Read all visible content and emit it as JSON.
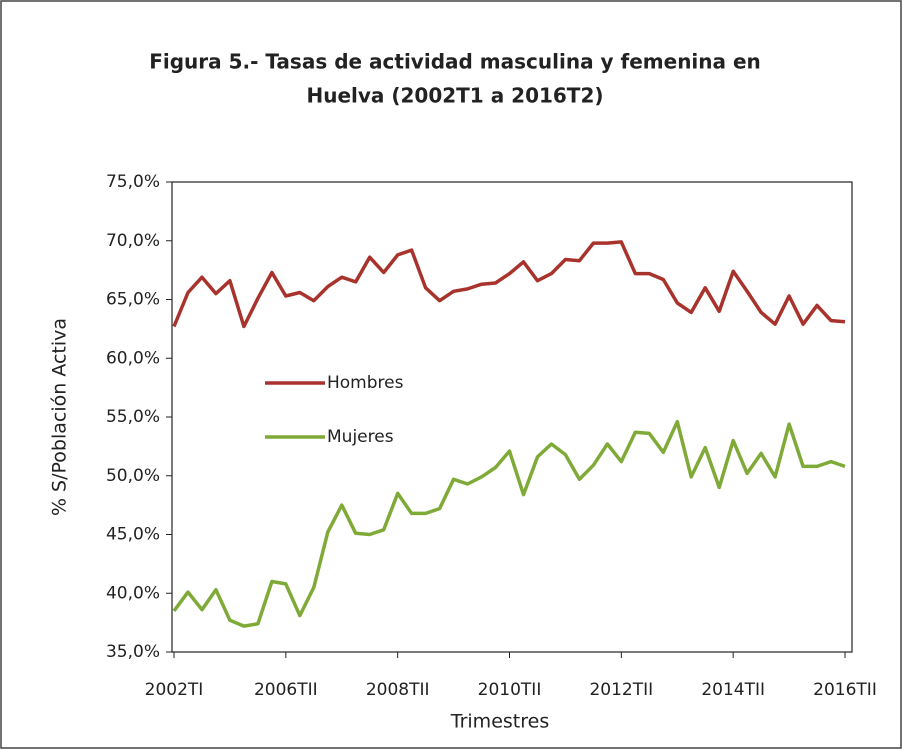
{
  "chart_data": {
    "type": "line",
    "title": "Figura 5.- Tasas de actividad masculina y femenina en",
    "subtitle": "Huelva (2002T1 a 2016T2)",
    "x_label": "Trimestres",
    "y_label": "% S/Población Activa",
    "categories": [
      "2002TI",
      null,
      null,
      null,
      null,
      null,
      null,
      null,
      "2006TII",
      null,
      null,
      null,
      null,
      null,
      null,
      null,
      "2008TII",
      null,
      null,
      null,
      null,
      null,
      null,
      null,
      "2010TII",
      null,
      null,
      null,
      null,
      null,
      null,
      null,
      "2012TII",
      null,
      null,
      null,
      null,
      null,
      null,
      null,
      "2014TII",
      null,
      null,
      null,
      null,
      null,
      null,
      null,
      "2016TII"
    ],
    "series": [
      {
        "name": "Hombres",
        "color": "#a8332c",
        "values": [
          62.7,
          65.6,
          66.9,
          65.5,
          66.6,
          62.7,
          65.1,
          67.3,
          65.3,
          65.6,
          64.9,
          66.1,
          66.9,
          66.5,
          68.6,
          67.3,
          68.8,
          69.2,
          66.0,
          64.9,
          65.7,
          65.9,
          66.3,
          66.4,
          67.2,
          68.2,
          66.6,
          67.2,
          68.4,
          68.3,
          69.8,
          69.8,
          69.9,
          67.2,
          67.2,
          66.7,
          64.7,
          63.9,
          66.0,
          64.0,
          67.4,
          65.7,
          63.9,
          62.9,
          65.3,
          62.9,
          64.5,
          63.2,
          63.1
        ]
      },
      {
        "name": "Mujeres",
        "color": "#7faa38",
        "values": [
          38.5,
          40.1,
          38.6,
          40.3,
          37.7,
          37.2,
          37.4,
          41.0,
          40.8,
          38.1,
          40.5,
          45.2,
          47.5,
          45.1,
          45.0,
          45.4,
          48.5,
          46.8,
          46.8,
          47.2,
          49.7,
          49.3,
          49.9,
          50.7,
          52.1,
          48.4,
          51.6,
          52.7,
          51.8,
          49.7,
          50.9,
          52.7,
          51.2,
          53.7,
          53.6,
          52.0,
          54.6,
          49.9,
          52.4,
          49.0,
          53.0,
          50.2,
          51.9,
          49.9,
          54.4,
          50.8,
          50.8,
          51.2,
          50.8
        ]
      }
    ],
    "ylim": [
      35,
      75
    ],
    "yticks": [
      {
        "value": 35,
        "label": "35,0%"
      },
      {
        "value": 40,
        "label": "40,0%"
      },
      {
        "value": 45,
        "label": "45,0%"
      },
      {
        "value": 50,
        "label": "50,0%"
      },
      {
        "value": 55,
        "label": "55,0%"
      },
      {
        "value": 60,
        "label": "60,0%"
      },
      {
        "value": 65,
        "label": "65,0%"
      },
      {
        "value": 70,
        "label": "70,0%"
      },
      {
        "value": 75,
        "label": "75,0%"
      }
    ],
    "grid": false,
    "legend": "center-left"
  }
}
